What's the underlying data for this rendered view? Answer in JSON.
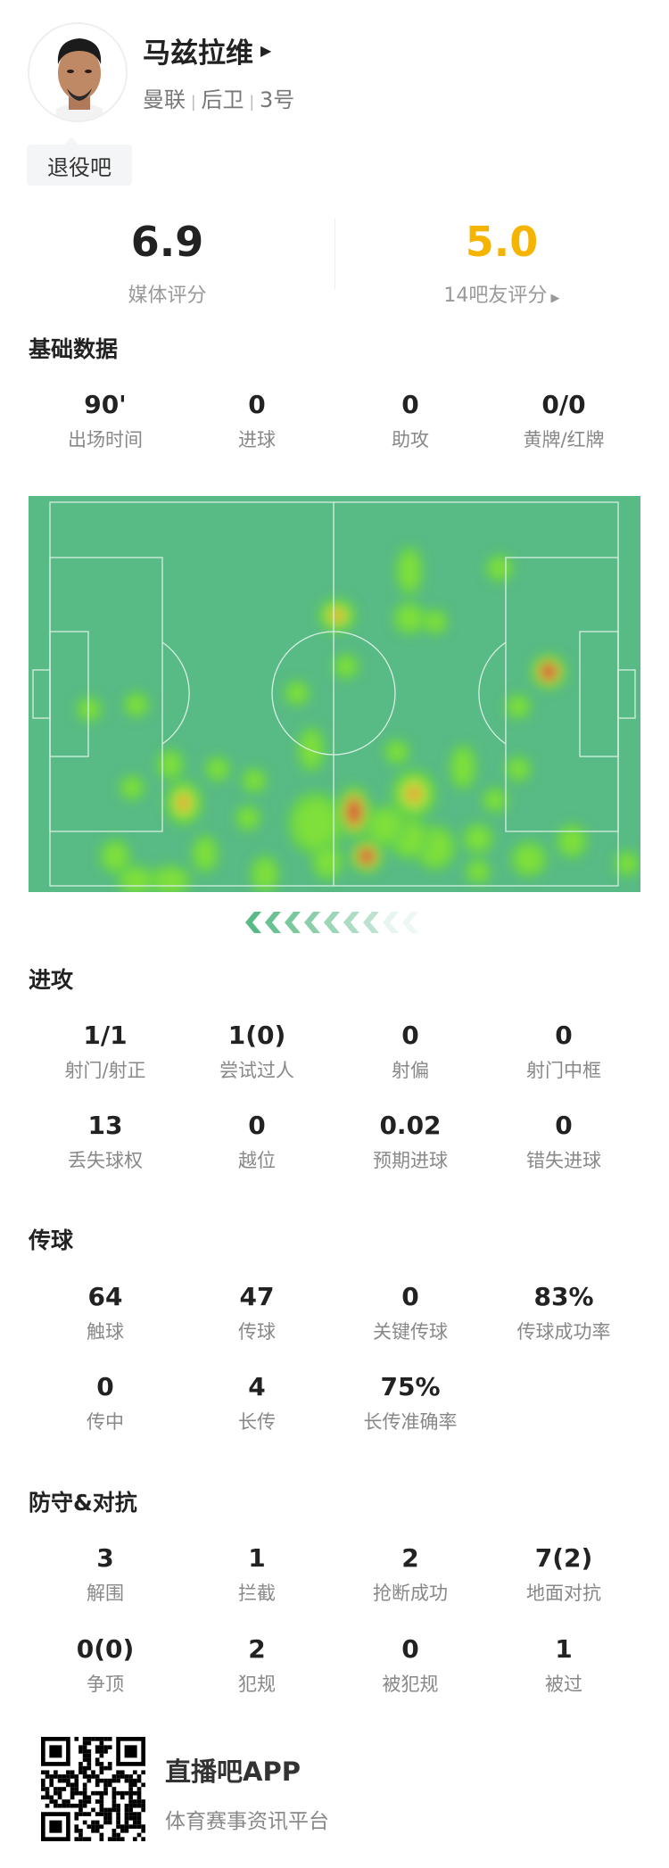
{
  "player": {
    "name": "马兹拉维",
    "team": "曼联",
    "position": "后卫",
    "number": "3号",
    "tag": "退役吧"
  },
  "ratings": {
    "media": {
      "value": "6.9",
      "label": "媒体评分"
    },
    "fans": {
      "value": "5.0",
      "label": "14吧友评分",
      "color": "#f5b400"
    }
  },
  "sections": [
    {
      "title": "基础数据",
      "rows": [
        [
          {
            "v": "90'",
            "l": "出场时间"
          },
          {
            "v": "0",
            "l": "进球"
          },
          {
            "v": "0",
            "l": "助攻"
          },
          {
            "v": "0/0",
            "l": "黄牌/红牌"
          }
        ]
      ]
    },
    {
      "title": "进攻",
      "rows": [
        [
          {
            "v": "1/1",
            "l": "射门/射正"
          },
          {
            "v": "1(0)",
            "l": "尝试过人"
          },
          {
            "v": "0",
            "l": "射偏"
          },
          {
            "v": "0",
            "l": "射门中框"
          }
        ],
        [
          {
            "v": "13",
            "l": "丢失球权"
          },
          {
            "v": "0",
            "l": "越位"
          },
          {
            "v": "0.02",
            "l": "预期进球"
          },
          {
            "v": "0",
            "l": "错失进球"
          }
        ]
      ]
    },
    {
      "title": "传球",
      "rows": [
        [
          {
            "v": "64",
            "l": "触球"
          },
          {
            "v": "47",
            "l": "传球"
          },
          {
            "v": "0",
            "l": "关键传球"
          },
          {
            "v": "83%",
            "l": "传球成功率"
          }
        ],
        [
          {
            "v": "0",
            "l": "传中"
          },
          {
            "v": "4",
            "l": "长传"
          },
          {
            "v": "75%",
            "l": "长传准确率"
          }
        ]
      ]
    },
    {
      "title": "防守&对抗",
      "rows": [
        [
          {
            "v": "3",
            "l": "解围"
          },
          {
            "v": "1",
            "l": "拦截"
          },
          {
            "v": "2",
            "l": "抢断成功"
          },
          {
            "v": "7(2)",
            "l": "地面对抗"
          }
        ],
        [
          {
            "v": "0(0)",
            "l": "争顶"
          },
          {
            "v": "2",
            "l": "犯规"
          },
          {
            "v": "0",
            "l": "被犯规"
          },
          {
            "v": "1",
            "l": "被过"
          }
        ]
      ]
    }
  ],
  "heatmap": {
    "pitch_color": "#58ba84",
    "attack_direction": "left"
  },
  "footer": {
    "app_name": "直播吧APP",
    "slogan": "体育赛事资讯平台"
  }
}
